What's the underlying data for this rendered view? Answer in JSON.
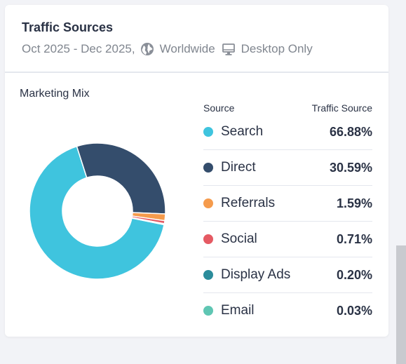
{
  "card": {
    "title": "Traffic Sources",
    "date_range": "Oct 2025 - Dec 2025,",
    "region": "Worldwide",
    "device": "Desktop Only",
    "region_icon": "globe-icon",
    "device_icon": "desktop-icon"
  },
  "chart": {
    "title": "Marketing Mix",
    "col_source": "Source",
    "col_value": "Traffic Source"
  },
  "chart_data": {
    "type": "pie",
    "donut": true,
    "title": "Marketing Mix",
    "categories": [
      "Search",
      "Direct",
      "Referrals",
      "Social",
      "Display Ads",
      "Email"
    ],
    "values": [
      66.88,
      30.59,
      1.59,
      0.71,
      0.2,
      0.03
    ],
    "labels": [
      "66.88%",
      "30.59%",
      "1.59%",
      "0.71%",
      "0.20%",
      "0.03%"
    ],
    "colors": [
      "#3fc4de",
      "#344d6c",
      "#f59b4c",
      "#e55a63",
      "#2b8c9b",
      "#5fc6b3"
    ],
    "legend": "right"
  }
}
